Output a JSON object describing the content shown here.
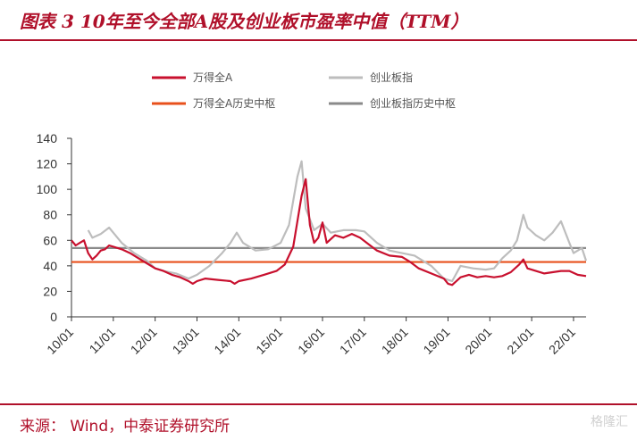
{
  "header": {
    "title": "图表 3 10年至今全部A股及创业板市盈率中值（TTM）"
  },
  "footer": {
    "source": "来源： Wind，中泰证券研究所",
    "watermark": "格隆汇"
  },
  "colors": {
    "all_a": "#c8102e",
    "chinext": "#bdbdbd",
    "all_a_median": "#e8501c",
    "chinext_median": "#8a8a8a",
    "accent": "#b0102a"
  },
  "chart_data": {
    "type": "line",
    "ylim": [
      0,
      140
    ],
    "yticks": [
      0,
      20,
      40,
      60,
      80,
      100,
      120,
      140
    ],
    "xlim": [
      2010.0,
      2022.3
    ],
    "xticks": [
      {
        "label": "10/01",
        "x": 2010.0
      },
      {
        "label": "11/01",
        "x": 2011.0
      },
      {
        "label": "12/01",
        "x": 2012.0
      },
      {
        "label": "13/01",
        "x": 2013.0
      },
      {
        "label": "14/01",
        "x": 2014.0
      },
      {
        "label": "15/01",
        "x": 2015.0
      },
      {
        "label": "16/01",
        "x": 2016.0
      },
      {
        "label": "17/01",
        "x": 2017.0
      },
      {
        "label": "18/01",
        "x": 2018.0
      },
      {
        "label": "19/01",
        "x": 2019.0
      },
      {
        "label": "20/01",
        "x": 2020.0
      },
      {
        "label": "21/01",
        "x": 2021.0
      },
      {
        "label": "22/01",
        "x": 2022.0
      }
    ],
    "legend_position": "top",
    "grid": false,
    "series": [
      {
        "name": "万得全A",
        "color": "#c8102e",
        "style": "solid",
        "points": [
          [
            2010.0,
            60
          ],
          [
            2010.1,
            56
          ],
          [
            2010.2,
            58
          ],
          [
            2010.3,
            60
          ],
          [
            2010.4,
            50
          ],
          [
            2010.5,
            45
          ],
          [
            2010.6,
            48
          ],
          [
            2010.7,
            52
          ],
          [
            2010.8,
            53
          ],
          [
            2010.9,
            56
          ],
          [
            2011.0,
            55
          ],
          [
            2011.2,
            53
          ],
          [
            2011.4,
            50
          ],
          [
            2011.6,
            46
          ],
          [
            2011.8,
            42
          ],
          [
            2012.0,
            38
          ],
          [
            2012.2,
            36
          ],
          [
            2012.4,
            33
          ],
          [
            2012.6,
            31
          ],
          [
            2012.8,
            28
          ],
          [
            2012.9,
            26
          ],
          [
            2013.0,
            28
          ],
          [
            2013.2,
            30
          ],
          [
            2013.5,
            29
          ],
          [
            2013.8,
            28
          ],
          [
            2013.9,
            26
          ],
          [
            2014.0,
            28
          ],
          [
            2014.3,
            30
          ],
          [
            2014.6,
            33
          ],
          [
            2014.9,
            36
          ],
          [
            2015.1,
            41
          ],
          [
            2015.3,
            55
          ],
          [
            2015.5,
            95
          ],
          [
            2015.6,
            108
          ],
          [
            2015.7,
            72
          ],
          [
            2015.8,
            58
          ],
          [
            2015.9,
            62
          ],
          [
            2016.0,
            74
          ],
          [
            2016.1,
            58
          ],
          [
            2016.3,
            64
          ],
          [
            2016.5,
            62
          ],
          [
            2016.7,
            65
          ],
          [
            2016.9,
            62
          ],
          [
            2017.1,
            57
          ],
          [
            2017.3,
            52
          ],
          [
            2017.6,
            48
          ],
          [
            2017.9,
            47
          ],
          [
            2018.1,
            43
          ],
          [
            2018.3,
            38
          ],
          [
            2018.6,
            34
          ],
          [
            2018.9,
            30
          ],
          [
            2019.0,
            26
          ],
          [
            2019.1,
            25
          ],
          [
            2019.3,
            31
          ],
          [
            2019.5,
            33
          ],
          [
            2019.7,
            31
          ],
          [
            2019.9,
            32
          ],
          [
            2020.1,
            31
          ],
          [
            2020.3,
            32
          ],
          [
            2020.5,
            35
          ],
          [
            2020.7,
            41
          ],
          [
            2020.8,
            45
          ],
          [
            2020.9,
            38
          ],
          [
            2021.1,
            36
          ],
          [
            2021.3,
            34
          ],
          [
            2021.5,
            35
          ],
          [
            2021.7,
            36
          ],
          [
            2021.9,
            36
          ],
          [
            2022.1,
            33
          ],
          [
            2022.3,
            32
          ]
        ]
      },
      {
        "name": "创业板指",
        "color": "#bdbdbd",
        "style": "solid",
        "points": [
          [
            2010.4,
            68
          ],
          [
            2010.5,
            62
          ],
          [
            2010.7,
            65
          ],
          [
            2010.9,
            70
          ],
          [
            2011.0,
            66
          ],
          [
            2011.2,
            58
          ],
          [
            2011.5,
            50
          ],
          [
            2011.8,
            44
          ],
          [
            2012.0,
            38
          ],
          [
            2012.2,
            36
          ],
          [
            2012.5,
            34
          ],
          [
            2012.8,
            30
          ],
          [
            2013.0,
            33
          ],
          [
            2013.3,
            40
          ],
          [
            2013.6,
            50
          ],
          [
            2013.8,
            58
          ],
          [
            2013.95,
            66
          ],
          [
            2014.1,
            58
          ],
          [
            2014.4,
            52
          ],
          [
            2014.7,
            53
          ],
          [
            2015.0,
            58
          ],
          [
            2015.2,
            72
          ],
          [
            2015.4,
            110
          ],
          [
            2015.5,
            122
          ],
          [
            2015.6,
            85
          ],
          [
            2015.8,
            68
          ],
          [
            2016.0,
            73
          ],
          [
            2016.2,
            66
          ],
          [
            2016.5,
            68
          ],
          [
            2016.8,
            68
          ],
          [
            2017.0,
            67
          ],
          [
            2017.3,
            58
          ],
          [
            2017.6,
            52
          ],
          [
            2017.9,
            50
          ],
          [
            2018.2,
            48
          ],
          [
            2018.6,
            40
          ],
          [
            2018.9,
            30
          ],
          [
            2019.1,
            28
          ],
          [
            2019.3,
            40
          ],
          [
            2019.6,
            38
          ],
          [
            2019.9,
            37
          ],
          [
            2020.1,
            38
          ],
          [
            2020.3,
            46
          ],
          [
            2020.5,
            52
          ],
          [
            2020.65,
            60
          ],
          [
            2020.8,
            80
          ],
          [
            2020.9,
            70
          ],
          [
            2021.1,
            64
          ],
          [
            2021.3,
            60
          ],
          [
            2021.5,
            66
          ],
          [
            2021.7,
            75
          ],
          [
            2021.9,
            58
          ],
          [
            2022.0,
            50
          ],
          [
            2022.2,
            54
          ],
          [
            2022.3,
            44
          ]
        ]
      },
      {
        "name": "万得全A历史中枢",
        "color": "#e8501c",
        "style": "hline",
        "value": 43
      },
      {
        "name": "创业板指历史中枢",
        "color": "#8a8a8a",
        "style": "hline",
        "value": 54
      }
    ]
  }
}
